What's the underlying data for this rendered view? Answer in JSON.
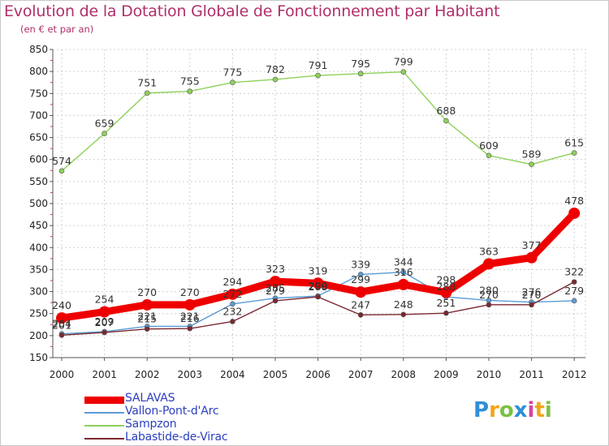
{
  "title": "Evolution de la Dotation Globale de Fonctionnement par Habitant",
  "subtitle": "(en € et par an)",
  "brand": {
    "text": "Proxiti",
    "logo_colors": [
      "#2f8fd6",
      "#f2a51a",
      "#7bc043",
      "#2f8fd6",
      "#d6449e",
      "#f2a51a",
      "#7bc043"
    ]
  },
  "chart_data": {
    "type": "line",
    "title": "Evolution de la Dotation Globale de Fonctionnement par Habitant",
    "subtitle": "(en € et par an)",
    "xlabel": "",
    "ylabel": "",
    "categories": [
      "2000",
      "2001",
      "2002",
      "2003",
      "2004",
      "2005",
      "2006",
      "2007",
      "2008",
      "2009",
      "2010",
      "2011",
      "2012"
    ],
    "ylim": [
      150,
      850
    ],
    "yticks": [
      150,
      200,
      250,
      300,
      350,
      400,
      450,
      500,
      550,
      600,
      650,
      700,
      750,
      800,
      850
    ],
    "grid": true,
    "legend_position": "bottom-left",
    "series": [
      {
        "name": "SALAVAS",
        "color": "#ee0000",
        "emphasis": true,
        "values": [
          240,
          254,
          270,
          270,
          294,
          323,
          319,
          299,
          316,
          298,
          363,
          377,
          478
        ]
      },
      {
        "name": "Vallon-Pont-d'Arc",
        "color": "#5b9bd5",
        "emphasis": false,
        "values": [
          204,
          209,
          221,
          221,
          272,
          285,
          290,
          339,
          344,
          288,
          280,
          276,
          279
        ]
      },
      {
        "name": "Sampzon",
        "color": "#8ed15a",
        "emphasis": false,
        "values": [
          574,
          659,
          751,
          755,
          775,
          782,
          791,
          795,
          799,
          688,
          609,
          589,
          615
        ]
      },
      {
        "name": "Labastide-de-Virac",
        "color": "#7a2830",
        "emphasis": false,
        "values": [
          201,
          207,
          215,
          216,
          232,
          279,
          288,
          247,
          248,
          251,
          270,
          270,
          322
        ]
      }
    ]
  }
}
